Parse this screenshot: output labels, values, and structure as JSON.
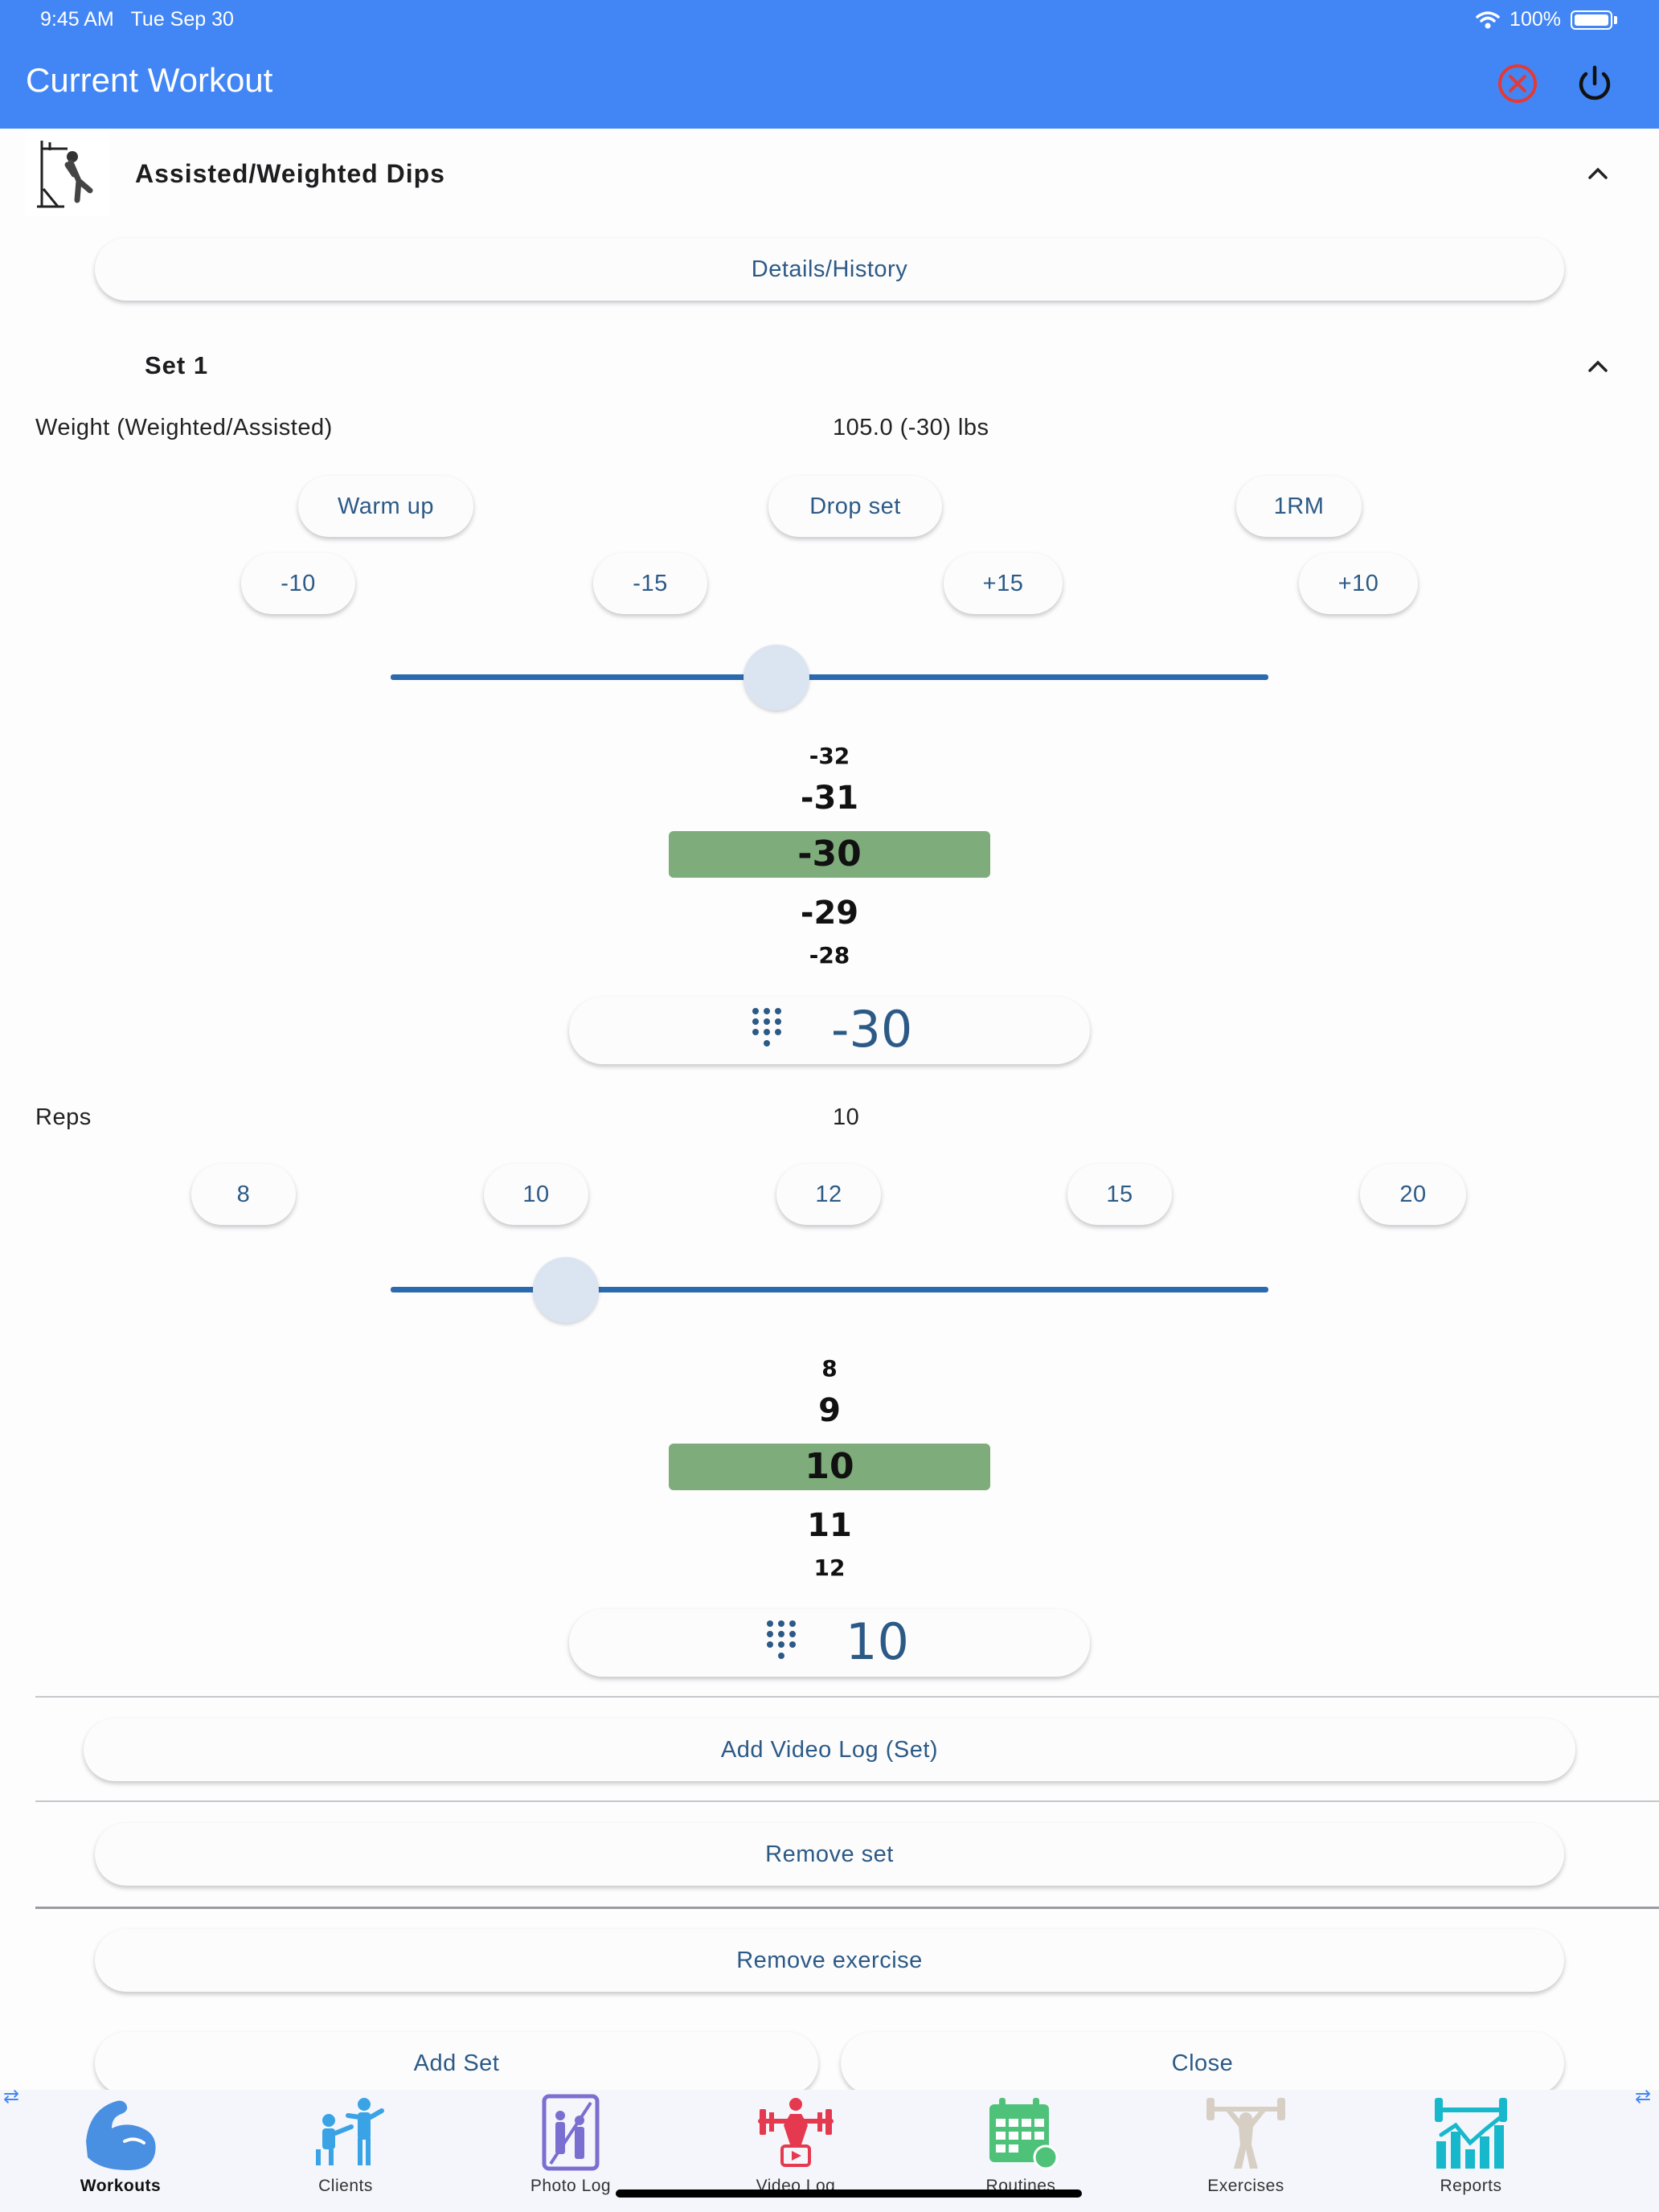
{
  "status_bar": {
    "time": "9:45 AM",
    "date": "Tue Sep 30",
    "battery": "100%"
  },
  "header": {
    "title": "Current Workout"
  },
  "exercise": {
    "name": "Assisted/Weighted Dips",
    "details_button": "Details/History"
  },
  "set": {
    "title": "Set 1",
    "weight_label": "Weight (Weighted/Assisted)",
    "weight_value": "105.0 (-30) lbs",
    "weight_type_buttons": [
      "Warm up",
      "Drop set",
      "1RM"
    ],
    "weight_step_buttons": [
      "-10",
      "-15",
      "+15",
      "+10"
    ],
    "weight_slider_level": 0.44,
    "weight_picker": [
      "-32",
      "-31",
      "-30",
      "-29",
      "-28"
    ],
    "weight_input": "-30",
    "reps_label": "Reps",
    "reps_value": "10",
    "reps_buttons": [
      "8",
      "10",
      "12",
      "15",
      "20"
    ],
    "reps_slider_level": 0.2,
    "reps_picker": [
      "8",
      "9",
      "10",
      "11",
      "12"
    ],
    "reps_input": "10"
  },
  "actions": {
    "add_video_log": "Add Video Log (Set)",
    "remove_set": "Remove set",
    "remove_exercise": "Remove exercise",
    "add_set": "Add Set",
    "close": "Close"
  },
  "nav": [
    {
      "label": "Workouts",
      "icon": "workouts-icon",
      "active": true,
      "color": "#4a90e2"
    },
    {
      "label": "Clients",
      "icon": "clients-icon",
      "active": false,
      "color": "#3aa3e6"
    },
    {
      "label": "Photo Log",
      "icon": "photo-log-icon",
      "active": false,
      "color": "#7a6fd0"
    },
    {
      "label": "Video Log",
      "icon": "video-log-icon",
      "active": false,
      "color": "#e53950"
    },
    {
      "label": "Routines",
      "icon": "routines-icon",
      "active": false,
      "color": "#4fc27a"
    },
    {
      "label": "Exercises",
      "icon": "exercises-icon",
      "active": false,
      "color": "#d8cfc4"
    },
    {
      "label": "Reports",
      "icon": "reports-icon",
      "active": false,
      "color": "#18b8cc"
    }
  ],
  "colors": {
    "appbar": "#4286f5",
    "accent_text": "#2c5a86",
    "picker_highlight": "#7fac7b",
    "slider": "#2b6aae"
  }
}
